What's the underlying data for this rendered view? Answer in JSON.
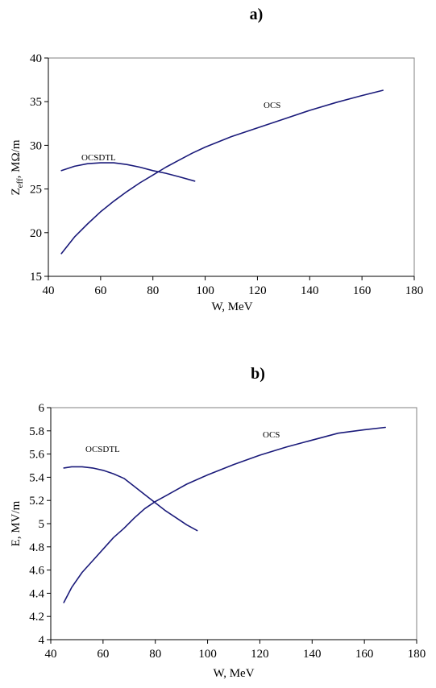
{
  "chart_data": [
    {
      "panel_label": "a)",
      "type": "line",
      "xlabel": "W, MeV",
      "ylabel_main": "Z",
      "ylabel_sub": "eff",
      "ylabel_rest": ", MΩ/m",
      "xlim": [
        40,
        180
      ],
      "ylim": [
        15,
        40
      ],
      "xticks": [
        40,
        60,
        80,
        100,
        120,
        140,
        160,
        180
      ],
      "yticks": [
        15,
        20,
        25,
        30,
        35,
        40
      ],
      "grid": false,
      "series": [
        {
          "name": "OCS",
          "color": "#1a1a7a",
          "x": [
            45,
            50,
            55,
            60,
            65,
            70,
            75,
            80,
            85,
            90,
            95,
            100,
            110,
            120,
            130,
            140,
            150,
            160,
            168
          ],
          "y": [
            17.6,
            19.5,
            21.0,
            22.4,
            23.6,
            24.7,
            25.7,
            26.6,
            27.5,
            28.3,
            29.1,
            29.8,
            31.0,
            32.0,
            33.0,
            34.0,
            34.9,
            35.7,
            36.3
          ]
        },
        {
          "name": "OCSDTL",
          "color": "#1a1a7a",
          "x": [
            45,
            50,
            55,
            60,
            65,
            70,
            75,
            80,
            85,
            90,
            96
          ],
          "y": [
            27.1,
            27.6,
            27.9,
            28.0,
            28.0,
            27.8,
            27.5,
            27.1,
            26.8,
            26.4,
            25.9
          ]
        }
      ]
    },
    {
      "panel_label": "b)",
      "type": "line",
      "xlabel": "W, MeV",
      "ylabel_main": "E, MV/m",
      "ylabel_sub": "",
      "ylabel_rest": "",
      "xlim": [
        40,
        180
      ],
      "ylim": [
        4,
        6
      ],
      "xticks": [
        40,
        60,
        80,
        100,
        120,
        140,
        160,
        180
      ],
      "yticks": [
        4,
        4.2,
        4.4,
        4.6,
        4.8,
        5,
        5.2,
        5.4,
        5.6,
        5.8,
        6
      ],
      "grid": false,
      "series": [
        {
          "name": "OCS",
          "color": "#1a1a7a",
          "x": [
            45,
            48,
            52,
            56,
            60,
            64,
            68,
            72,
            76,
            80,
            84,
            88,
            92,
            100,
            110,
            120,
            130,
            140,
            150,
            160,
            168
          ],
          "y": [
            4.32,
            4.45,
            4.58,
            4.68,
            4.78,
            4.88,
            4.96,
            5.05,
            5.13,
            5.19,
            5.24,
            5.29,
            5.34,
            5.42,
            5.51,
            5.59,
            5.66,
            5.72,
            5.78,
            5.81,
            5.83
          ]
        },
        {
          "name": "OCSDTL",
          "color": "#1a1a7a",
          "x": [
            45,
            48,
            52,
            56,
            60,
            64,
            68,
            72,
            76,
            80,
            84,
            88,
            92,
            96
          ],
          "y": [
            5.48,
            5.49,
            5.49,
            5.48,
            5.46,
            5.43,
            5.39,
            5.32,
            5.25,
            5.18,
            5.11,
            5.05,
            4.99,
            4.94
          ]
        }
      ]
    }
  ]
}
